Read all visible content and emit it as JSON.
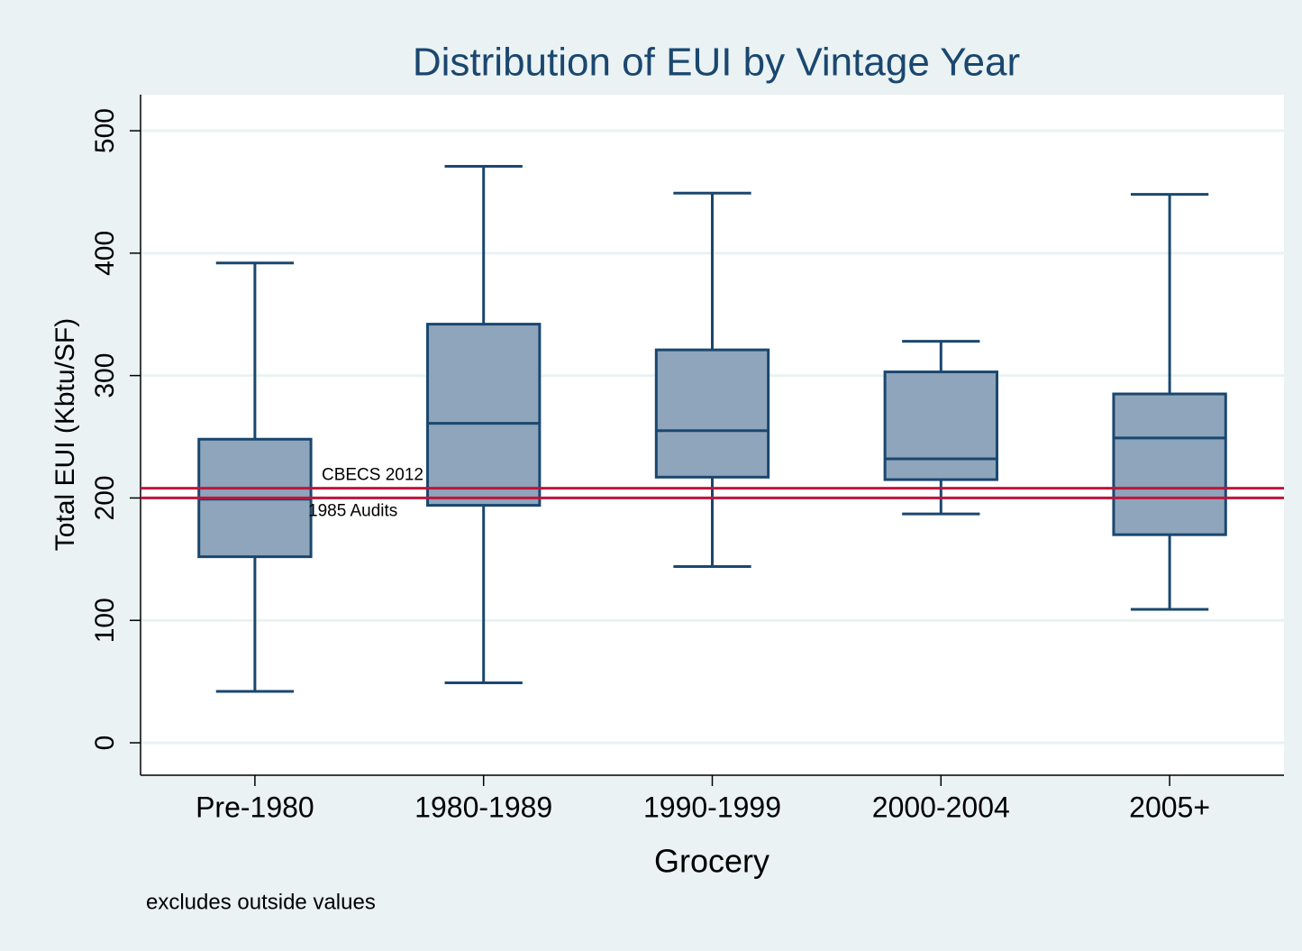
{
  "chart_data": {
    "type": "box",
    "title": "Distribution of EUI by Vintage Year",
    "x_label": "Grocery",
    "y_label": "Total EUI (Kbtu/SF)",
    "note": "excludes outside values",
    "categories": [
      "Pre-1980",
      "1980-1989",
      "1990-1999",
      "2000-2004",
      "2005+"
    ],
    "min": [
      42,
      49,
      144,
      187,
      109
    ],
    "q1": [
      152,
      194,
      217,
      215,
      170
    ],
    "median": [
      199,
      261,
      255,
      232,
      249
    ],
    "q3": [
      248,
      342,
      321,
      303,
      285
    ],
    "max": [
      392,
      471,
      449,
      328,
      448
    ],
    "color": "#8ea5bb",
    "edge_color": "#1a476f",
    "reference_lines": [
      {
        "label": "CBECS 2012",
        "value": 208,
        "color": "#c0143c"
      },
      {
        "label": "1985 Audits",
        "value": 200,
        "color": "#c0143c"
      }
    ],
    "ylim": [
      -26.5,
      529.5
    ],
    "yticks": [
      0,
      100,
      200,
      300,
      400,
      500
    ],
    "grid": true
  }
}
